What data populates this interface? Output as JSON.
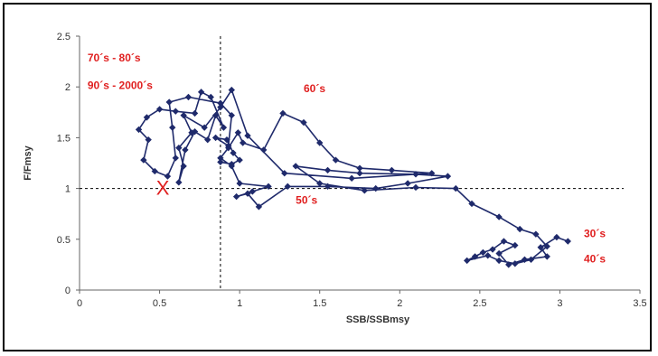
{
  "chart_data": {
    "type": "scatter",
    "xlabel": "SSB/SSBmsy",
    "ylabel": "F/Fmsy",
    "xlim": [
      0,
      3.5
    ],
    "ylim": [
      0,
      2.5
    ],
    "xticks": [
      "0",
      "0.5",
      "1",
      "1.5",
      "2",
      "2.5",
      "3",
      "3.5"
    ],
    "yticks": [
      "0",
      "0.5",
      "1",
      "1.5",
      "2",
      "2.5"
    ],
    "grid": false,
    "reference_lines": {
      "x": 0.88,
      "y": 1.0
    },
    "line_color": "#1f2a6b",
    "annotation_color": "#e02020",
    "annotations": [
      {
        "text": "70´s - 80´s",
        "x": 0.05,
        "y": 2.25
      },
      {
        "text": "90´s - 2000´s",
        "x": 0.05,
        "y": 1.98
      },
      {
        "text": "60´s",
        "x": 1.4,
        "y": 1.95
      },
      {
        "text": "50´s",
        "x": 1.35,
        "y": 0.85
      },
      {
        "text": "30´s",
        "x": 3.15,
        "y": 0.52
      },
      {
        "text": "40´s",
        "x": 3.15,
        "y": 0.27
      }
    ],
    "current_marker": {
      "symbol": "X",
      "x": 0.52,
      "y": 1.0
    },
    "series": [
      {
        "values": [
          [
            3.05,
            0.48
          ],
          [
            2.98,
            0.52
          ],
          [
            2.88,
            0.42
          ],
          [
            2.92,
            0.33
          ],
          [
            2.78,
            0.3
          ],
          [
            2.68,
            0.25
          ],
          [
            2.62,
            0.36
          ],
          [
            2.72,
            0.44
          ],
          [
            2.65,
            0.48
          ],
          [
            2.58,
            0.4
          ],
          [
            2.52,
            0.37
          ],
          [
            2.47,
            0.33
          ],
          [
            2.42,
            0.29
          ],
          [
            2.55,
            0.34
          ],
          [
            2.62,
            0.29
          ],
          [
            2.72,
            0.26
          ],
          [
            2.82,
            0.3
          ],
          [
            2.92,
            0.43
          ],
          [
            2.85,
            0.55
          ],
          [
            2.75,
            0.6
          ],
          [
            2.62,
            0.72
          ],
          [
            2.45,
            0.85
          ],
          [
            2.35,
            1.0
          ],
          [
            2.1,
            1.01
          ],
          [
            1.78,
            0.98
          ],
          [
            1.5,
            1.05
          ],
          [
            1.35,
            1.22
          ],
          [
            1.55,
            1.18
          ],
          [
            1.75,
            1.15
          ],
          [
            2.1,
            1.14
          ],
          [
            2.3,
            1.12
          ],
          [
            2.05,
            1.05
          ],
          [
            1.85,
            1.0
          ],
          [
            1.55,
            1.02
          ],
          [
            1.3,
            1.02
          ],
          [
            1.12,
            0.82
          ],
          [
            1.05,
            0.95
          ],
          [
            0.98,
            0.92
          ],
          [
            1.08,
            0.97
          ],
          [
            1.18,
            1.02
          ],
          [
            1.0,
            1.05
          ],
          [
            0.95,
            1.22
          ],
          [
            0.88,
            1.3
          ],
          [
            0.93,
            1.4
          ],
          [
            0.99,
            1.55
          ],
          [
            1.02,
            1.45
          ],
          [
            1.15,
            1.38
          ],
          [
            1.27,
            1.74
          ],
          [
            1.4,
            1.65
          ],
          [
            1.5,
            1.45
          ],
          [
            1.6,
            1.28
          ],
          [
            1.75,
            1.2
          ],
          [
            1.95,
            1.18
          ],
          [
            2.2,
            1.15
          ],
          [
            1.7,
            1.1
          ],
          [
            1.28,
            1.15
          ],
          [
            1.05,
            1.52
          ],
          [
            0.95,
            1.97
          ],
          [
            0.88,
            1.8
          ],
          [
            0.78,
            1.6
          ],
          [
            0.65,
            1.72
          ],
          [
            0.7,
            1.55
          ],
          [
            0.62,
            1.4
          ],
          [
            0.65,
            1.22
          ],
          [
            0.62,
            1.06
          ],
          [
            0.66,
            1.38
          ],
          [
            0.72,
            1.56
          ],
          [
            0.8,
            1.48
          ],
          [
            0.85,
            1.72
          ],
          [
            0.9,
            1.6
          ],
          [
            0.82,
            1.9
          ],
          [
            0.76,
            1.95
          ],
          [
            0.72,
            1.74
          ],
          [
            0.6,
            1.76
          ],
          [
            0.5,
            1.78
          ],
          [
            0.42,
            1.7
          ],
          [
            0.37,
            1.58
          ],
          [
            0.43,
            1.48
          ],
          [
            0.4,
            1.28
          ],
          [
            0.47,
            1.17
          ],
          [
            0.55,
            1.12
          ],
          [
            0.6,
            1.3
          ],
          [
            0.58,
            1.6
          ],
          [
            0.56,
            1.85
          ],
          [
            0.68,
            1.9
          ],
          [
            0.88,
            1.84
          ],
          [
            0.95,
            1.72
          ],
          [
            0.93,
            1.42
          ],
          [
            0.85,
            1.5
          ],
          [
            0.92,
            1.48
          ],
          [
            0.96,
            1.35
          ],
          [
            1.0,
            1.28
          ],
          [
            0.95,
            1.24
          ],
          [
            0.88,
            1.26
          ]
        ]
      }
    ]
  }
}
